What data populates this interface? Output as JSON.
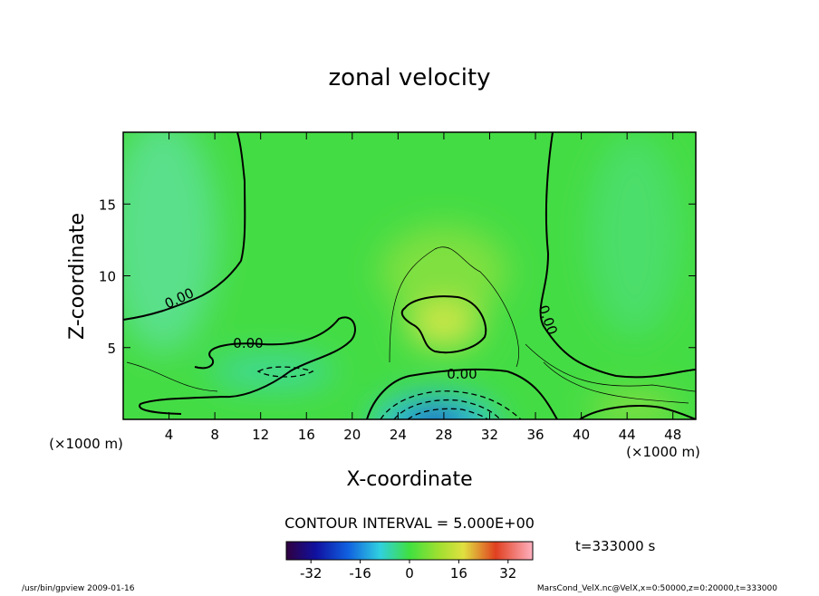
{
  "chart_data": {
    "type": "contour",
    "title": "zonal velocity",
    "xlabel": "X-coordinate",
    "ylabel": "Z-coordinate",
    "xunit": "(×1000 m)",
    "yunit": "(×1000 m)",
    "xlim": [
      0,
      50
    ],
    "xticks": [
      4,
      8,
      12,
      16,
      20,
      24,
      28,
      32,
      36,
      40,
      44,
      48
    ],
    "ylim": [
      0,
      20
    ],
    "yticks": [
      5,
      10,
      15
    ],
    "contour_labels": [
      "0.00",
      "0.00",
      "0.00",
      "0.00"
    ],
    "contour_interval_label": "CONTOUR INTERVAL = 5.000E+00",
    "time_label": "t=333000 s",
    "colorbar": {
      "lim": [
        -40,
        40
      ],
      "ticks": [
        -32,
        -16,
        0,
        16,
        32
      ]
    },
    "footer_left": "/usr/bin/gpview   2009-01-16",
    "footer_right": "MarsCond_VelX.nc@VelX,x=0:50000,z=0:20000,t=333000"
  }
}
